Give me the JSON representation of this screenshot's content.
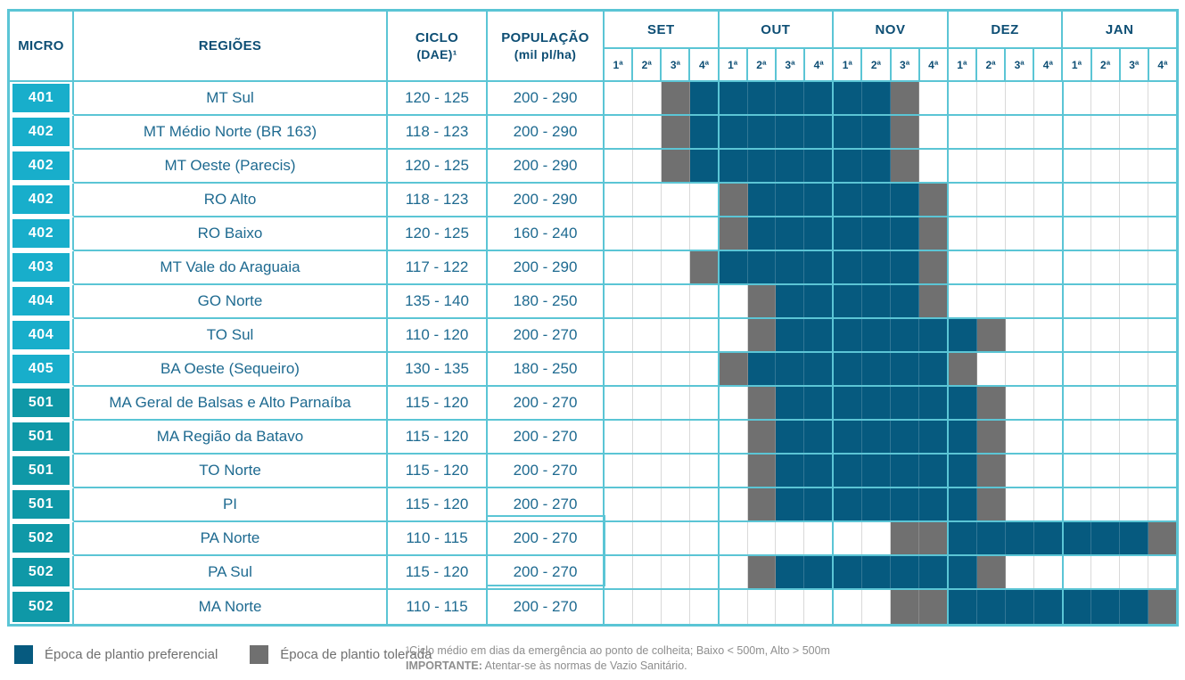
{
  "table_header": {
    "micro": "MICRO",
    "regioes": "REGIÕES",
    "ciclo_line1": "CICLO",
    "ciclo_line2": "(DAE)¹",
    "populacao_line1": "POPULAÇÃO",
    "populacao_line2": "(mil pl/ha)"
  },
  "chart_data": {
    "type": "table",
    "subtype": "planting-window-gantt-calendar",
    "months": [
      "SET",
      "OUT",
      "NOV",
      "DEZ",
      "JAN"
    ],
    "weeks_per_month": [
      "1ª",
      "2ª",
      "3ª",
      "4ª"
    ],
    "state_codes": {
      ".": "nenhum",
      "P": "Época de plantio preferencial",
      "T": "Época de plantio tolerada"
    },
    "rows": [
      {
        "micro": "401",
        "regiao": "MT Sul",
        "ciclo": "120 - 125",
        "populacao": "200 - 290",
        "tone": "cyan",
        "cells": "..TPPPPPPPT........."
      },
      {
        "micro": "402",
        "regiao": "MT Médio Norte (BR 163)",
        "ciclo": "118 - 123",
        "populacao": "200 - 290",
        "tone": "cyan",
        "cells": "..TPPPPPPPT........."
      },
      {
        "micro": "402",
        "regiao": "MT Oeste (Parecis)",
        "ciclo": "120 - 125",
        "populacao": "200 - 290",
        "tone": "cyan",
        "cells": "..TPPPPPPPT........."
      },
      {
        "micro": "402",
        "regiao": "RO Alto",
        "ciclo": "118 - 123",
        "populacao": "200 - 290",
        "tone": "cyan",
        "cells": "....TPPPPPPT........"
      },
      {
        "micro": "402",
        "regiao": "RO Baixo",
        "ciclo": "120 - 125",
        "populacao": "160 - 240",
        "tone": "cyan",
        "cells": "....TPPPPPPT........"
      },
      {
        "micro": "403",
        "regiao": "MT Vale do Araguaia",
        "ciclo": "117 - 122",
        "populacao": "200 - 290",
        "tone": "cyan",
        "cells": "...TPPPPPPPT........"
      },
      {
        "micro": "404",
        "regiao": "GO Norte",
        "ciclo": "135 - 140",
        "populacao": "180 - 250",
        "tone": "cyan",
        "cells": ".....TPPPPPT........"
      },
      {
        "micro": "404",
        "regiao": "TO Sul",
        "ciclo": "110 - 120",
        "populacao": "200 - 270",
        "tone": "cyan",
        "cells": ".....TPPPPPPPT......"
      },
      {
        "micro": "405",
        "regiao": "BA Oeste (Sequeiro)",
        "ciclo": "130 - 135",
        "populacao": "180 - 250",
        "tone": "cyan",
        "cells": "....TPPPPPPPT......."
      },
      {
        "micro": "501",
        "regiao": "MA Geral de Balsas e Alto Parnaíba",
        "ciclo": "115 - 120",
        "populacao": "200 - 270",
        "tone": "teal",
        "cells": ".....TPPPPPPPT......"
      },
      {
        "micro": "501",
        "regiao": "MA Região da Batavo",
        "ciclo": "115 - 120",
        "populacao": "200 - 270",
        "tone": "teal",
        "cells": ".....TPPPPPPPT......"
      },
      {
        "micro": "501",
        "regiao": "TO Norte",
        "ciclo": "115 - 120",
        "populacao": "200 - 270",
        "tone": "teal",
        "cells": ".....TPPPPPPPT......"
      },
      {
        "micro": "501",
        "regiao": "PI",
        "ciclo": "115 - 120",
        "populacao": "200 - 270",
        "tone": "teal",
        "cells": ".....TPPPPPPPT......"
      },
      {
        "micro": "502",
        "regiao": "PA Norte",
        "ciclo": "110 - 115",
        "populacao": "200 - 270",
        "tone": "teal",
        "cells": "..........TTPPPPPPPT"
      },
      {
        "micro": "502",
        "regiao": "PA Sul",
        "ciclo": "115 - 120",
        "populacao": "200 - 270",
        "tone": "teal",
        "cells": ".....TPPPPPPPT......"
      },
      {
        "micro": "502",
        "regiao": "MA Norte",
        "ciclo": "110 - 115",
        "populacao": "200 - 270",
        "tone": "teal",
        "cells": "..........TTPPPPPPPT"
      }
    ]
  },
  "legend": {
    "preferencial": "Época de plantio preferencial",
    "tolerada": "Época de plantio tolerada"
  },
  "footnotes": {
    "ciclo": "¹Ciclo médio em dias da emergência ao ponto de colheita; Baixo < 500m, Alto > 500m",
    "importante_label": "IMPORTANTE:",
    "importante_text": " Atentar-se às normas de Vazio Sanitário."
  },
  "colors": {
    "preferencial": "#065A7F",
    "tolerada": "#707070",
    "border_teal": "#5BC5D5",
    "micro_cyan": "#18AECB",
    "micro_teal": "#0F98A7",
    "header_text": "#0D4E74",
    "cell_text": "#1E6A90",
    "grid_light": "#D9D9D9",
    "legend_text": "#6F6F6F",
    "footnote_text": "#8E8E8E"
  }
}
